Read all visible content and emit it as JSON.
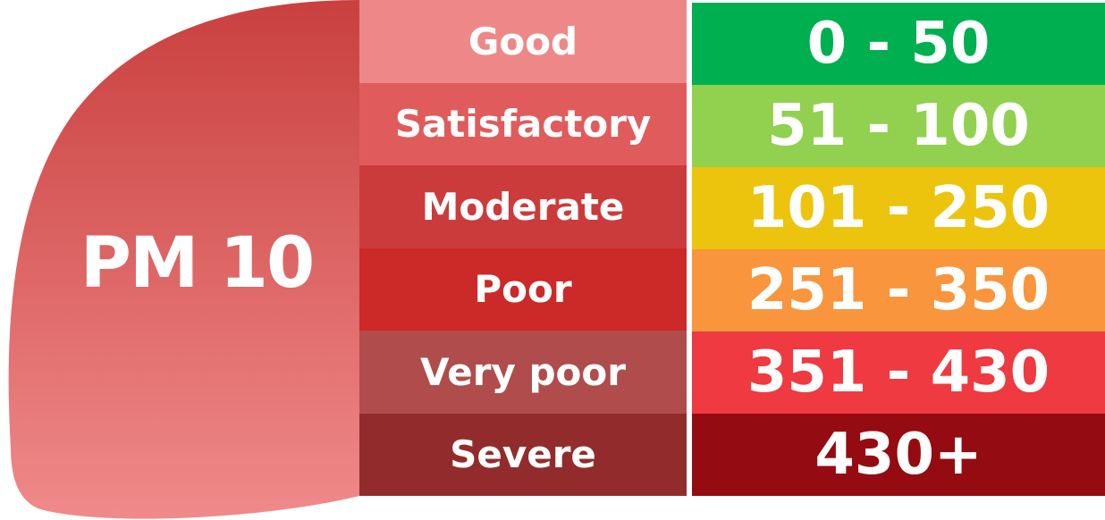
{
  "title": "PM 10",
  "colors": {
    "leaf_top": "#c9403f",
    "leaf_bottom": "#f08a8a"
  },
  "rows": [
    {
      "category": "Good",
      "range": "0 - 50",
      "category_color": "#ee8888",
      "range_color": "#00af50"
    },
    {
      "category": "Satisfactory",
      "range": "51 - 100",
      "category_color": "#e05c5c",
      "range_color": "#92d050"
    },
    {
      "category": "Moderate",
      "range": "101 - 250",
      "category_color": "#cc3b3b",
      "range_color": "#ecc40d"
    },
    {
      "category": "Poor",
      "range": "251 - 350",
      "category_color": "#cc2929",
      "range_color": "#f9953d"
    },
    {
      "category": "Very poor",
      "range": "351 - 430",
      "category_color": "#b04c4c",
      "range_color": "#ee3a40"
    },
    {
      "category": "Severe",
      "range": "430+",
      "category_color": "#922c2c",
      "range_color": "#940c12"
    }
  ]
}
